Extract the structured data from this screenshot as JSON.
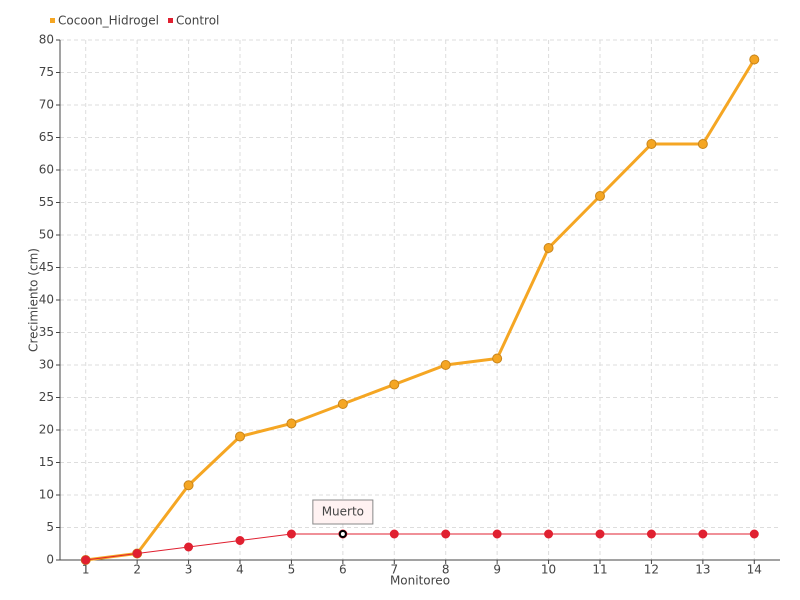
{
  "chart_data": {
    "type": "line",
    "x_label": "Monitoreo",
    "y_label": "Crecimiento (cm)",
    "categories": [
      "1",
      "2",
      "3",
      "4",
      "5",
      "6",
      "7",
      "8",
      "9",
      "10",
      "11",
      "12",
      "13",
      "14"
    ],
    "series": [
      {
        "name": "Cocoon_Hidrogel",
        "color": "#f5a623",
        "values": [
          0,
          1,
          11.5,
          19,
          21,
          24,
          27,
          30,
          31,
          48,
          56,
          64,
          64,
          77
        ]
      },
      {
        "name": "Control",
        "color": "#e02030",
        "values": [
          0,
          1,
          2,
          3,
          4,
          4,
          4,
          4,
          4,
          4,
          4,
          4,
          4,
          4
        ]
      }
    ],
    "annotation": "Muerto",
    "ylim": [
      0,
      80
    ],
    "yticks": [
      0,
      5,
      10,
      15,
      20,
      25,
      30,
      35,
      40,
      45,
      50,
      55,
      60,
      65,
      70,
      75,
      80
    ],
    "grid": true,
    "legend": "top-left"
  }
}
